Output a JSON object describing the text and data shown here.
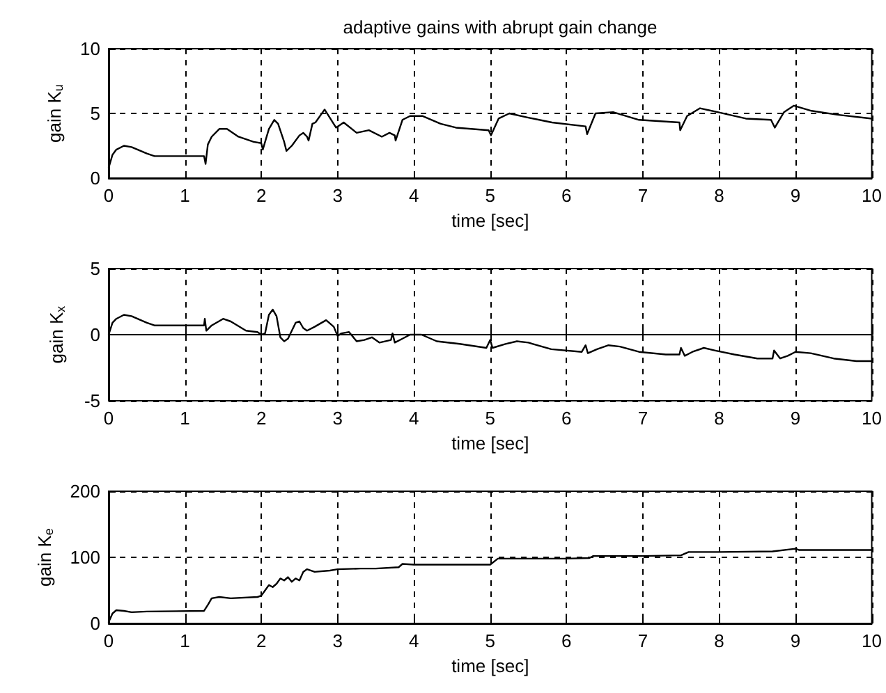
{
  "chart_data": [
    {
      "type": "line",
      "title": "adaptive gains with abrupt gain change",
      "xlabel": "time [sec]",
      "ylabel": "gain K$_{u}$",
      "color": "#000000",
      "xlim": [
        0,
        10
      ],
      "ylim": [
        0,
        10
      ],
      "xticks": [
        0,
        1,
        2,
        3,
        4,
        5,
        6,
        7,
        8,
        9,
        10
      ],
      "yticks": [
        0,
        5,
        10
      ],
      "grid": true,
      "x": [
        0,
        0.05,
        0.1,
        0.2,
        0.3,
        0.5,
        0.6,
        1.25,
        1.27,
        1.3,
        1.35,
        1.45,
        1.55,
        1.7,
        1.9,
        2.0,
        2.02,
        2.05,
        2.1,
        2.17,
        2.22,
        2.3,
        2.33,
        2.4,
        2.5,
        2.55,
        2.6,
        2.62,
        2.67,
        2.71,
        2.83,
        2.98,
        3.08,
        3.25,
        3.41,
        3.58,
        3.68,
        3.75,
        3.76,
        3.85,
        3.95,
        4.11,
        4.35,
        4.55,
        4.98,
        5.01,
        5.11,
        5.25,
        5.48,
        5.81,
        6.25,
        6.27,
        6.38,
        6.61,
        6.95,
        7.48,
        7.49,
        7.58,
        7.75,
        7.98,
        8.35,
        8.68,
        8.73,
        8.85,
        8.98,
        9.21,
        9.55,
        10
      ],
      "values": [
        0.8,
        1.8,
        2.2,
        2.5,
        2.4,
        1.9,
        1.7,
        1.7,
        1.1,
        2.6,
        3.2,
        3.8,
        3.8,
        3.2,
        2.8,
        2.7,
        2.2,
        2.8,
        3.8,
        4.5,
        4.2,
        2.8,
        2.1,
        2.5,
        3.3,
        3.5,
        3.2,
        2.9,
        4.2,
        4.3,
        5.3,
        3.9,
        4.3,
        3.5,
        3.7,
        3.2,
        3.5,
        3.3,
        2.9,
        4.5,
        4.8,
        4.8,
        4.2,
        3.9,
        3.7,
        3.3,
        4.6,
        5.0,
        4.7,
        4.3,
        4.0,
        3.4,
        5.0,
        5.1,
        4.5,
        4.3,
        3.7,
        4.8,
        5.4,
        5.1,
        4.6,
        4.5,
        3.9,
        5.1,
        5.6,
        5.2,
        4.9,
        4.6
      ]
    },
    {
      "type": "line",
      "xlabel": "time [sec]",
      "ylabel": "gain K$_{x}$",
      "color": "#000000",
      "xlim": [
        0,
        10
      ],
      "ylim": [
        -5,
        5
      ],
      "xticks": [
        0,
        1,
        2,
        3,
        4,
        5,
        6,
        7,
        8,
        9,
        10
      ],
      "yticks": [
        -5,
        0,
        5
      ],
      "grid": true,
      "x": [
        0,
        0.05,
        0.1,
        0.2,
        0.3,
        0.5,
        0.6,
        1.25,
        1.26,
        1.28,
        1.35,
        1.5,
        1.6,
        1.8,
        1.95,
        2.0,
        2.05,
        2.1,
        2.15,
        2.2,
        2.25,
        2.3,
        2.35,
        2.45,
        2.5,
        2.55,
        2.6,
        2.7,
        2.85,
        2.95,
        3.0,
        3.05,
        3.15,
        3.25,
        3.35,
        3.45,
        3.55,
        3.7,
        3.72,
        3.75,
        3.85,
        3.95,
        4.1,
        4.3,
        4.6,
        4.95,
        5.0,
        5.03,
        5.2,
        5.35,
        5.5,
        5.8,
        6.2,
        6.25,
        6.28,
        6.4,
        6.55,
        6.7,
        6.95,
        7.3,
        7.48,
        7.5,
        7.55,
        7.65,
        7.8,
        7.95,
        8.2,
        8.5,
        8.7,
        8.72,
        8.8,
        8.9,
        9.0,
        9.2,
        9.5,
        9.8,
        10
      ],
      "values": [
        0.0,
        0.9,
        1.2,
        1.5,
        1.4,
        0.9,
        0.7,
        0.7,
        1.2,
        0.3,
        0.7,
        1.2,
        1.0,
        0.3,
        0.2,
        0.0,
        0.1,
        1.5,
        1.9,
        1.4,
        -0.2,
        -0.5,
        -0.3,
        0.9,
        1.0,
        0.5,
        0.3,
        0.6,
        1.1,
        0.6,
        -0.1,
        0.1,
        0.2,
        -0.5,
        -0.4,
        -0.2,
        -0.6,
        -0.4,
        0.1,
        -0.6,
        -0.3,
        0.0,
        0.0,
        -0.5,
        -0.7,
        -1.0,
        -0.4,
        -1.0,
        -0.7,
        -0.5,
        -0.6,
        -1.1,
        -1.3,
        -0.8,
        -1.4,
        -1.1,
        -0.8,
        -0.9,
        -1.3,
        -1.5,
        -1.5,
        -1.0,
        -1.6,
        -1.3,
        -1.0,
        -1.2,
        -1.5,
        -1.8,
        -1.8,
        -1.2,
        -1.8,
        -1.6,
        -1.3,
        -1.4,
        -1.8,
        -2.0,
        -2.0
      ]
    },
    {
      "type": "line",
      "xlabel": "time [sec]",
      "ylabel": "gain K$_{e}$",
      "color": "#000000",
      "xlim": [
        0,
        10
      ],
      "ylim": [
        0,
        200
      ],
      "xticks": [
        0,
        1,
        2,
        3,
        4,
        5,
        6,
        7,
        8,
        9,
        10
      ],
      "yticks": [
        0,
        100,
        200
      ],
      "grid": true,
      "x": [
        0,
        0.05,
        0.1,
        0.2,
        0.3,
        0.5,
        1.25,
        1.3,
        1.35,
        1.45,
        1.6,
        1.95,
        2.0,
        2.05,
        2.1,
        2.15,
        2.2,
        2.25,
        2.3,
        2.35,
        2.4,
        2.45,
        2.5,
        2.55,
        2.6,
        2.7,
        2.9,
        3.0,
        3.3,
        3.5,
        3.8,
        3.85,
        4.0,
        4.5,
        5.0,
        5.1,
        5.5,
        6.0,
        6.3,
        6.35,
        7.0,
        7.5,
        7.6,
        8.0,
        8.7,
        9.0,
        9.05,
        10
      ],
      "values": [
        2,
        15,
        20,
        19,
        17,
        18,
        19,
        28,
        38,
        40,
        38,
        40,
        42,
        50,
        58,
        55,
        60,
        68,
        65,
        70,
        63,
        68,
        65,
        78,
        82,
        78,
        80,
        82,
        83,
        83,
        85,
        90,
        89,
        89,
        89,
        98,
        98,
        98,
        99,
        102,
        102,
        103,
        108,
        108,
        109,
        113,
        111,
        111
      ]
    }
  ]
}
